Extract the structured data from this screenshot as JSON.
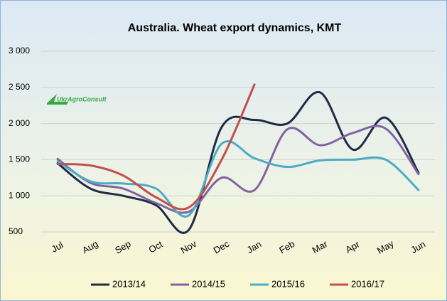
{
  "chart_data": {
    "type": "line",
    "title": "Australia. Wheat export dynamics, KMT",
    "logo": "UkrAgroConsult",
    "categories": [
      "Jul",
      "Aug",
      "Sep",
      "Oct",
      "Nov",
      "Dec",
      "Jan",
      "Feb",
      "Mar",
      "Apr",
      "May",
      "Jun"
    ],
    "series": [
      {
        "name": "2013/14",
        "color": "#1f2a44",
        "values": [
          1450,
          1100,
          1000,
          870,
          530,
          1950,
          2050,
          2000,
          2430,
          1640,
          2080,
          1320
        ]
      },
      {
        "name": "2014/15",
        "color": "#8064a2",
        "values": [
          1510,
          1180,
          1100,
          900,
          780,
          1250,
          1080,
          1920,
          1700,
          1870,
          1930,
          1300
        ]
      },
      {
        "name": "2015/16",
        "color": "#4bacc6",
        "values": [
          1480,
          1200,
          1170,
          1100,
          730,
          1720,
          1520,
          1400,
          1490,
          1500,
          1500,
          1080
        ]
      },
      {
        "name": "2016/17",
        "color": "#c0504d",
        "values": [
          1440,
          1420,
          1280,
          980,
          840,
          1500,
          2540,
          null,
          null,
          null,
          null,
          null
        ]
      }
    ],
    "ylim": [
      500,
      3000
    ],
    "yticks": [
      500,
      {
        "value": 1000,
        "label": "1 000"
      },
      {
        "value": 1500,
        "label": "1 500"
      },
      {
        "value": 2000,
        "label": "2 000"
      },
      {
        "value": 2500,
        "label": "2 500"
      },
      {
        "value": 3000,
        "label": "3 000"
      }
    ],
    "grid": true,
    "legend": "bottom"
  }
}
